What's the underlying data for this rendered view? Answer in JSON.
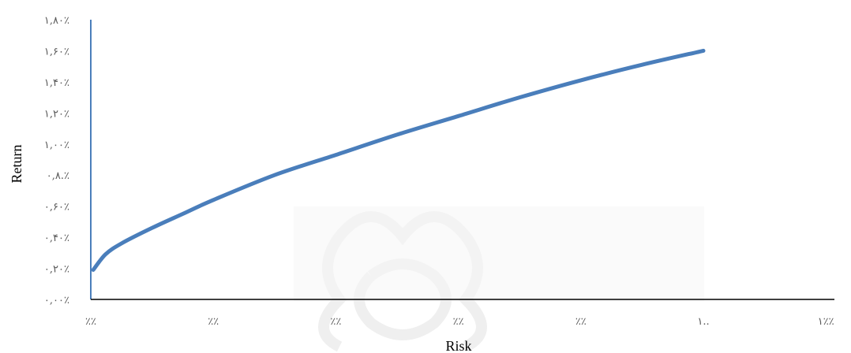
{
  "chart_data": {
    "type": "line",
    "title": "",
    "xlabel": "Risk",
    "ylabel": "Return",
    "x_tick_labels": [
      "٪٪",
      "٪٪",
      "٪٪",
      "٪٪",
      "٪٪",
      "١..",
      "١٪٪"
    ],
    "y_tick_labels": [
      "٠,٠٠٪",
      "٠,٢٠٪",
      "٠,۴٠٪",
      "٠,۶٠٪",
      "٠,٨.٪",
      "١,٠٠٪",
      "١,٢٠٪",
      "١,۴٠٪",
      "١,۶٠٪",
      "١,٨٠٪"
    ],
    "ylim": [
      0,
      1.8
    ],
    "xlim": [
      0,
      6
    ],
    "grid": false,
    "legend": "none",
    "series": [
      {
        "color": "#4a7ebb",
        "x": [
          0.02,
          0.12,
          0.25,
          0.5,
          0.75,
          1.0,
          1.5,
          2.0,
          2.5,
          3.0,
          3.5,
          4.0,
          4.5,
          5.0
        ],
        "y": [
          0.19,
          0.29,
          0.36,
          0.46,
          0.55,
          0.64,
          0.8,
          0.93,
          1.06,
          1.18,
          1.3,
          1.41,
          1.51,
          1.6
        ]
      }
    ]
  }
}
